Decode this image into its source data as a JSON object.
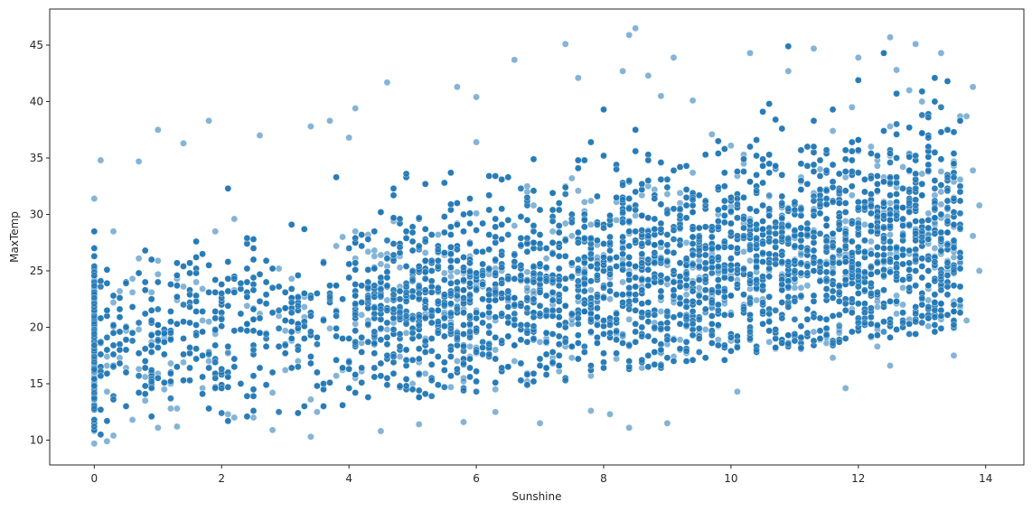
{
  "chart_data": {
    "type": "scatter",
    "title": "",
    "xlabel": "Sunshine",
    "ylabel": "MaxTemp",
    "xlim": [
      -0.7,
      14.6
    ],
    "ylim": [
      7.8,
      48.2
    ],
    "xticks": [
      0,
      2,
      4,
      6,
      8,
      10,
      12,
      14
    ],
    "xtick_labels": [
      "0",
      "2",
      "4",
      "6",
      "8",
      "10",
      "12",
      "14"
    ],
    "yticks": [
      10,
      15,
      20,
      25,
      30,
      35,
      40,
      45
    ],
    "ytick_labels": [
      "10",
      "15",
      "20",
      "25",
      "30",
      "35",
      "40",
      "45"
    ],
    "grid": false,
    "legend": "none",
    "marker_color": "#1f77b4",
    "marker_edge_color": "#ffffff",
    "marker_alpha": 0.55,
    "approximate_point_count": 11000,
    "trend": {
      "slope": 0.72,
      "intercept": 18.5
    },
    "points": [
      [
        0.0,
        31.4
      ],
      [
        0.0,
        9.7
      ],
      [
        0.1,
        34.8
      ],
      [
        0.7,
        34.7
      ],
      [
        1.0,
        37.5
      ],
      [
        1.4,
        36.3
      ],
      [
        1.8,
        38.3
      ],
      [
        2.6,
        37.0
      ],
      [
        3.4,
        37.8
      ],
      [
        3.7,
        38.3
      ],
      [
        4.0,
        36.8
      ],
      [
        4.1,
        39.4
      ],
      [
        4.6,
        41.7
      ],
      [
        5.7,
        41.3
      ],
      [
        6.0,
        40.4
      ],
      [
        6.6,
        43.7
      ],
      [
        7.4,
        45.1
      ],
      [
        7.6,
        42.1
      ],
      [
        8.3,
        42.7
      ],
      [
        8.4,
        45.9
      ],
      [
        8.5,
        46.5
      ],
      [
        8.7,
        42.3
      ],
      [
        9.1,
        43.9
      ],
      [
        9.4,
        40.1
      ],
      [
        10.3,
        44.3
      ],
      [
        10.9,
        42.7
      ],
      [
        11.3,
        44.7
      ],
      [
        12.0,
        43.9
      ],
      [
        12.5,
        45.7
      ],
      [
        12.9,
        45.1
      ],
      [
        13.3,
        44.3
      ],
      [
        3.4,
        10.3
      ],
      [
        4.5,
        10.8
      ],
      [
        5.1,
        11.4
      ],
      [
        7.0,
        11.5
      ],
      [
        8.4,
        11.1
      ],
      [
        9.0,
        11.5
      ],
      [
        11.8,
        14.6
      ],
      [
        12.5,
        16.6
      ],
      [
        13.5,
        17.5
      ],
      [
        13.7,
        20.6
      ],
      [
        13.9,
        25.0
      ],
      [
        13.8,
        28.1
      ],
      [
        13.9,
        30.8
      ],
      [
        13.8,
        33.9
      ],
      [
        13.7,
        38.7
      ],
      [
        13.8,
        41.3
      ],
      [
        2.8,
        10.9
      ],
      [
        1.0,
        11.1
      ],
      [
        0.3,
        10.4
      ],
      [
        0.6,
        11.8
      ],
      [
        1.3,
        11.2
      ],
      [
        2.2,
        12.0
      ],
      [
        5.8,
        11.6
      ],
      [
        6.3,
        12.5
      ],
      [
        7.8,
        12.6
      ],
      [
        8.1,
        12.3
      ],
      [
        10.1,
        14.3
      ],
      [
        11.6,
        17.3
      ],
      [
        12.3,
        18.3
      ]
    ]
  }
}
